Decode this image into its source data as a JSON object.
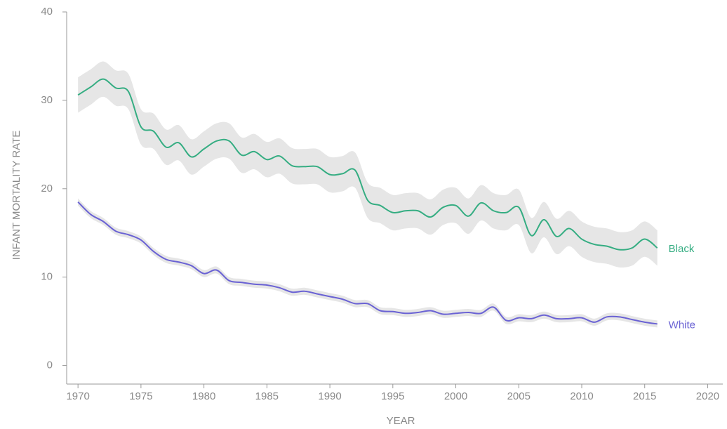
{
  "chart_data": {
    "type": "line",
    "x_label": "YEAR",
    "y_label": "INFANT MORTALITY RATE",
    "x": [
      1970,
      1971,
      1972,
      1973,
      1974,
      1975,
      1976,
      1977,
      1978,
      1979,
      1980,
      1981,
      1982,
      1983,
      1984,
      1985,
      1986,
      1987,
      1988,
      1989,
      1990,
      1991,
      1992,
      1993,
      1994,
      1995,
      1996,
      1997,
      1998,
      1999,
      2000,
      2001,
      2002,
      2003,
      2004,
      2005,
      2006,
      2007,
      2008,
      2009,
      2010,
      2011,
      2012,
      2013,
      2014,
      2015,
      2016
    ],
    "xlim": [
      1969.1,
      2021.2
    ],
    "xticks": [
      1970,
      1975,
      1980,
      1985,
      1990,
      1995,
      2000,
      2005,
      2010,
      2015,
      2020
    ],
    "ylim": [
      -2.1,
      40
    ],
    "yticks": [
      0,
      10,
      20,
      30,
      40
    ],
    "band_color": "#e6e6e6",
    "series": [
      {
        "name": "Black",
        "color": "#35ad82",
        "values": [
          30.6,
          31.5,
          32.4,
          31.4,
          31.0,
          27.0,
          26.5,
          24.7,
          25.2,
          23.6,
          24.5,
          25.4,
          25.4,
          23.8,
          24.2,
          23.3,
          23.7,
          22.6,
          22.5,
          22.5,
          21.6,
          21.7,
          22.1,
          18.7,
          18.1,
          17.3,
          17.5,
          17.5,
          16.8,
          17.9,
          18.1,
          16.9,
          18.4,
          17.5,
          17.3,
          17.9,
          14.7,
          16.5,
          14.6,
          15.5,
          14.3,
          13.7,
          13.5,
          13.1,
          13.3,
          14.3,
          13.3
        ],
        "lower": [
          28.6,
          29.5,
          30.4,
          29.4,
          29.0,
          25.0,
          24.5,
          22.7,
          23.2,
          21.6,
          22.5,
          23.4,
          23.4,
          21.8,
          22.2,
          21.3,
          21.7,
          20.6,
          20.5,
          20.5,
          19.6,
          19.7,
          20.1,
          16.7,
          16.1,
          15.3,
          15.5,
          15.5,
          14.8,
          15.9,
          16.1,
          14.9,
          16.4,
          15.5,
          15.3,
          15.9,
          12.7,
          14.5,
          12.6,
          13.5,
          12.3,
          11.7,
          11.5,
          11.1,
          11.3,
          12.3,
          11.3
        ],
        "upper": [
          32.6,
          33.5,
          34.4,
          33.4,
          33.0,
          29.0,
          28.5,
          26.7,
          27.2,
          25.6,
          26.5,
          27.4,
          27.4,
          25.8,
          26.2,
          25.3,
          25.7,
          24.6,
          24.5,
          24.5,
          23.6,
          23.7,
          24.1,
          20.7,
          20.1,
          19.3,
          19.5,
          19.5,
          18.8,
          19.9,
          20.1,
          18.9,
          20.4,
          19.5,
          19.3,
          19.9,
          16.7,
          18.5,
          16.6,
          17.5,
          16.3,
          15.7,
          15.5,
          15.1,
          15.3,
          16.3,
          15.3
        ]
      },
      {
        "name": "White",
        "color": "#6a62d4",
        "values": [
          18.5,
          17.1,
          16.3,
          15.2,
          14.8,
          14.2,
          12.9,
          12.0,
          11.7,
          11.3,
          10.4,
          10.8,
          9.6,
          9.4,
          9.2,
          9.1,
          8.8,
          8.3,
          8.4,
          8.1,
          7.8,
          7.5,
          7.0,
          7.0,
          6.2,
          6.1,
          5.9,
          6.0,
          6.2,
          5.8,
          5.9,
          6.0,
          5.9,
          6.6,
          5.1,
          5.4,
          5.3,
          5.7,
          5.3,
          5.3,
          5.4,
          4.9,
          5.5,
          5.5,
          5.2,
          4.9,
          4.7
        ],
        "lower": [
          18.1,
          16.7,
          15.9,
          14.8,
          14.4,
          13.8,
          12.5,
          11.6,
          11.3,
          10.9,
          10.0,
          10.4,
          9.2,
          9.0,
          8.8,
          8.7,
          8.4,
          7.9,
          8.0,
          7.7,
          7.4,
          7.1,
          6.6,
          6.6,
          5.8,
          5.7,
          5.5,
          5.6,
          5.8,
          5.4,
          5.5,
          5.6,
          5.5,
          6.2,
          4.7,
          5.0,
          4.9,
          5.3,
          4.9,
          4.9,
          5.0,
          4.5,
          5.1,
          5.1,
          4.8,
          4.5,
          4.3
        ],
        "upper": [
          18.9,
          17.5,
          16.7,
          15.6,
          15.2,
          14.6,
          13.3,
          12.4,
          12.1,
          11.7,
          10.8,
          11.2,
          10.0,
          9.8,
          9.6,
          9.5,
          9.2,
          8.7,
          8.8,
          8.5,
          8.2,
          7.9,
          7.4,
          7.4,
          6.6,
          6.5,
          6.3,
          6.4,
          6.6,
          6.2,
          6.3,
          6.4,
          6.3,
          7.0,
          5.5,
          5.8,
          5.7,
          6.1,
          5.7,
          5.7,
          5.8,
          5.3,
          5.9,
          5.9,
          5.6,
          5.3,
          5.1
        ]
      }
    ]
  }
}
